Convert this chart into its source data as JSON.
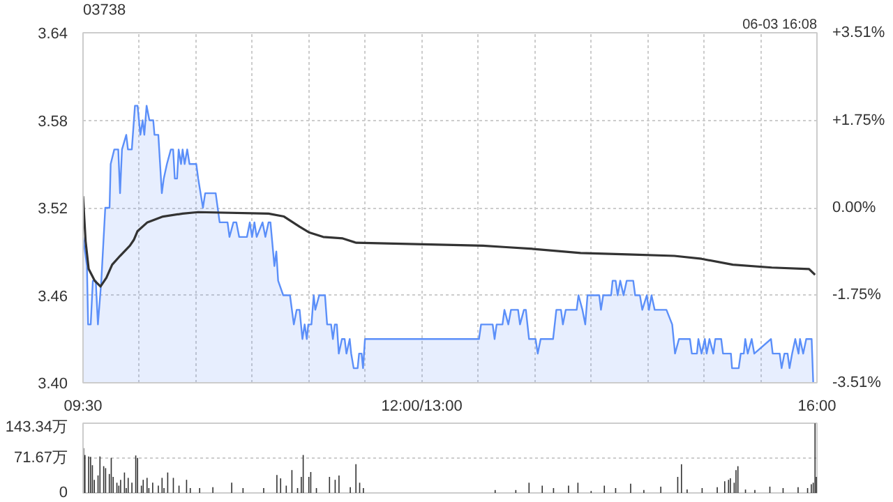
{
  "chart_data": [
    {
      "type": "line",
      "title": "03738",
      "subtitle": "06-03 16:08",
      "xlim": [
        9.5,
        16
      ],
      "xticks": [
        {
          "value": 9.5,
          "label": "09:30"
        },
        {
          "value": 10,
          "label": null
        },
        {
          "value": 10.5,
          "label": null
        },
        {
          "value": 11,
          "label": null
        },
        {
          "value": 11.5,
          "label": null
        },
        {
          "value": 12,
          "label": null
        },
        {
          "value": 12.5,
          "label": "12:00/13:00"
        },
        {
          "value": 13,
          "label": null
        },
        {
          "value": 13.5,
          "label": null
        },
        {
          "value": 14,
          "label": null
        },
        {
          "value": 14.5,
          "label": null
        },
        {
          "value": 15,
          "label": null
        },
        {
          "value": 15.5,
          "label": null
        },
        {
          "value": 16,
          "label": "16:00"
        }
      ],
      "ylim": [
        3.4,
        3.64
      ],
      "yticks": [
        {
          "value": 3.4,
          "label": "3.40"
        },
        3.46,
        3.52,
        3.58,
        3.64
      ],
      "y2lim": [
        -3.51,
        3.51
      ],
      "y2ticks": [
        {
          "value": -3.51,
          "label": "-3.51%"
        },
        {
          "value": -1.75,
          "label": "-1.75%"
        },
        {
          "value": 0,
          "label": "0.00%"
        },
        {
          "value": 1.75,
          "label": "+1.75%"
        },
        {
          "value": 3.51,
          "label": "+3.51%"
        }
      ],
      "grid": true,
      "series": [
        {
          "type": "area",
          "color": "#5b8ff9",
          "x": [
            9.5,
            9.535,
            9.545,
            9.568,
            9.587,
            9.613,
            9.632,
            9.662,
            9.697,
            9.735,
            9.745,
            9.777,
            9.812,
            9.828,
            9.845,
            9.883,
            9.898,
            9.932,
            9.96,
            9.983,
            10.008,
            10.028,
            10.043,
            10.063,
            10.088,
            10.122,
            10.133,
            10.167,
            10.198,
            10.215,
            10.243,
            10.278,
            10.298,
            10.313,
            10.333,
            10.347,
            10.368,
            10.382,
            10.4,
            10.423,
            10.443,
            10.503,
            10.52,
            10.562,
            10.582,
            10.675,
            10.71,
            10.78,
            10.797,
            10.832,
            10.858,
            10.883,
            10.952,
            10.977,
            10.997,
            11.018,
            11.038,
            11.09,
            11.115,
            11.143,
            11.16,
            11.195,
            11.212,
            11.228,
            11.273,
            11.333,
            11.367,
            11.392,
            11.418,
            11.443,
            11.463,
            11.482,
            11.495,
            11.523,
            11.543,
            11.557,
            11.592,
            11.643,
            11.662,
            11.697,
            11.713,
            11.73,
            11.748,
            11.765,
            11.793,
            11.817,
            11.833,
            11.862,
            11.875,
            11.897,
            11.932,
            11.945,
            11.967,
            11.98,
            11.997,
            13.007,
            13.025,
            13.128,
            13.145,
            13.163,
            13.215,
            13.232,
            13.267,
            13.29,
            13.353,
            13.37,
            13.405,
            13.422,
            13.45,
            13.508,
            13.527,
            13.553,
            13.663,
            13.692,
            13.733,
            13.75,
            13.775,
            13.872,
            13.888,
            13.923,
            13.948,
            13.968,
            14.072,
            14.087,
            14.107,
            14.177,
            14.19,
            14.217,
            14.235,
            14.258,
            14.287,
            14.315,
            14.373,
            14.39,
            14.432,
            14.453,
            14.493,
            14.512,
            14.535,
            14.563,
            14.667,
            14.718,
            14.743,
            14.778,
            14.875,
            14.892,
            14.937,
            14.95,
            14.978,
            15.007,
            15.023,
            15.048,
            15.082,
            15.1,
            15.152,
            15.168,
            15.238,
            15.248,
            15.307,
            15.325,
            15.352,
            15.365,
            15.387,
            15.422,
            15.445,
            15.593,
            15.608,
            15.67,
            15.687,
            15.712,
            15.74,
            15.757,
            15.78,
            15.808,
            15.837,
            15.85,
            15.878,
            15.905,
            15.953,
            15.967
          ],
          "values": [
            3.5,
            3.48,
            3.44,
            3.44,
            3.47,
            3.47,
            3.44,
            3.47,
            3.52,
            3.52,
            3.55,
            3.56,
            3.56,
            3.53,
            3.56,
            3.57,
            3.56,
            3.56,
            3.59,
            3.59,
            3.57,
            3.58,
            3.57,
            3.59,
            3.58,
            3.58,
            3.57,
            3.57,
            3.53,
            3.54,
            3.55,
            3.56,
            3.56,
            3.54,
            3.54,
            3.56,
            3.55,
            3.56,
            3.55,
            3.56,
            3.55,
            3.55,
            3.54,
            3.52,
            3.53,
            3.53,
            3.51,
            3.51,
            3.5,
            3.51,
            3.51,
            3.5,
            3.5,
            3.51,
            3.5,
            3.51,
            3.5,
            3.51,
            3.5,
            3.51,
            3.51,
            3.48,
            3.49,
            3.47,
            3.46,
            3.46,
            3.44,
            3.45,
            3.45,
            3.43,
            3.44,
            3.43,
            3.44,
            3.44,
            3.46,
            3.45,
            3.46,
            3.46,
            3.44,
            3.44,
            3.43,
            3.44,
            3.44,
            3.42,
            3.43,
            3.43,
            3.42,
            3.43,
            3.42,
            3.41,
            3.41,
            3.42,
            3.42,
            3.41,
            3.43,
            3.43,
            3.44,
            3.44,
            3.43,
            3.44,
            3.44,
            3.45,
            3.44,
            3.45,
            3.45,
            3.44,
            3.45,
            3.45,
            3.43,
            3.43,
            3.42,
            3.43,
            3.43,
            3.45,
            3.45,
            3.44,
            3.45,
            3.45,
            3.46,
            3.45,
            3.44,
            3.46,
            3.46,
            3.45,
            3.46,
            3.46,
            3.47,
            3.47,
            3.46,
            3.47,
            3.46,
            3.47,
            3.47,
            3.46,
            3.46,
            3.45,
            3.46,
            3.45,
            3.46,
            3.45,
            3.45,
            3.44,
            3.42,
            3.43,
            3.43,
            3.42,
            3.42,
            3.43,
            3.42,
            3.43,
            3.42,
            3.43,
            3.42,
            3.43,
            3.43,
            3.42,
            3.42,
            3.41,
            3.41,
            3.42,
            3.42,
            3.43,
            3.42,
            3.43,
            3.42,
            3.43,
            3.42,
            3.42,
            3.41,
            3.42,
            3.42,
            3.41,
            3.42,
            3.43,
            3.42,
            3.43,
            3.42,
            3.43,
            3.43,
            3.4
          ]
        },
        {
          "type": "line",
          "color": "#333333",
          "x": [
            9.5,
            9.523,
            9.55,
            9.603,
            9.655,
            9.707,
            9.758,
            9.828,
            9.915,
            9.95,
            9.983,
            10.07,
            10.208,
            10.382,
            10.52,
            11.143,
            11.28,
            11.418,
            11.505,
            11.627,
            11.8,
            11.92,
            13.042,
            13.248,
            13.457,
            13.907,
            14.322,
            14.737,
            14.978,
            15.255,
            15.6,
            15.93,
            15.983
          ],
          "values": [
            3.528,
            3.497,
            3.478,
            3.47,
            3.466,
            3.472,
            3.481,
            3.487,
            3.494,
            3.498,
            3.504,
            3.51,
            3.514,
            3.516,
            3.517,
            3.516,
            3.514,
            3.507,
            3.503,
            3.5,
            3.499,
            3.496,
            3.494,
            3.493,
            3.492,
            3.489,
            3.488,
            3.487,
            3.485,
            3.481,
            3.479,
            3.478,
            3.474
          ]
        }
      ]
    },
    {
      "type": "bar",
      "xlim": [
        9.5,
        16
      ],
      "ylim": [
        0,
        143.34
      ],
      "yticks": [
        0,
        {
          "value": 71.67,
          "label": "71.67万"
        },
        {
          "value": 143.34,
          "label": "143.34万"
        }
      ],
      "tick_labels": "y",
      "grid": "y",
      "series": [
        {
          "color": "#333333",
          "x": [
            9.505,
            9.517,
            9.55,
            9.567,
            9.583,
            9.6,
            9.633,
            9.65,
            9.683,
            9.7,
            9.733,
            9.75,
            9.767,
            9.8,
            9.817,
            9.833,
            9.867,
            9.883,
            9.9,
            9.933,
            9.967,
            9.983,
            10.017,
            10.033,
            10.067,
            10.083,
            10.117,
            10.167,
            10.2,
            10.217,
            10.25,
            10.3,
            10.35,
            10.417,
            10.45,
            10.533,
            10.65,
            10.817,
            10.917,
            11.1,
            11.217,
            11.25,
            11.3,
            11.35,
            11.4,
            11.433,
            11.45,
            11.5,
            11.517,
            11.567,
            11.683,
            11.733,
            11.767,
            11.867,
            11.917,
            11.95,
            11.983,
            13.15,
            13.333,
            13.45,
            13.567,
            13.667,
            13.8,
            13.883,
            14,
            14.117,
            14.217,
            14.35,
            14.467,
            14.617,
            14.767,
            14.8,
            14.85,
            14.983,
            15.117,
            15.183,
            15.217,
            15.233,
            15.267,
            15.283,
            15.3,
            15.367,
            15.45,
            15.583,
            15.7,
            15.833,
            15.917,
            15.95,
            15.967,
            15.983,
            15.995
          ],
          "values": [
            92,
            78,
            75,
            74,
            57,
            27,
            36,
            75,
            55,
            51,
            39,
            72,
            33,
            21,
            15,
            27,
            42,
            10,
            31,
            21,
            77,
            72,
            15,
            27,
            31,
            10,
            21,
            15,
            31,
            10,
            42,
            31,
            15,
            27,
            10,
            10,
            12,
            21,
            10,
            10,
            37,
            30,
            15,
            47,
            10,
            33,
            78,
            33,
            43,
            10,
            33,
            27,
            36,
            12,
            59,
            21,
            10,
            6,
            6,
            21,
            15,
            10,
            15,
            21,
            4,
            15,
            10,
            19,
            6,
            13,
            33,
            59,
            7,
            10,
            12,
            24,
            27,
            30,
            21,
            47,
            55,
            7,
            6,
            13,
            10,
            12,
            10,
            18,
            21,
            143,
            33
          ]
        }
      ]
    }
  ]
}
